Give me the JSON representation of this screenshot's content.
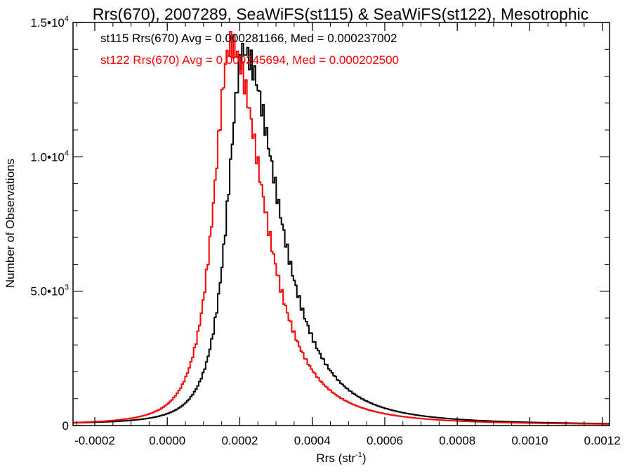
{
  "chart_data": {
    "type": "histogram",
    "title": "Rrs(670), 2007289, SeaWiFS(st115) & SeaWiFS(st122), Mesotrophic",
    "xlabel": "Rrs (str",
    "xlabel_sup": "-1",
    "xlabel_end": ")",
    "ylabel": "Number of Observations",
    "xlim": [
      -0.00026,
      0.00122
    ],
    "ylim": [
      0,
      15000
    ],
    "x_ticks": [
      {
        "value": -0.0002,
        "label": "-0.0002"
      },
      {
        "value": 0.0,
        "label": "0.0000"
      },
      {
        "value": 0.0002,
        "label": "0.0002"
      },
      {
        "value": 0.0004,
        "label": "0.0004"
      },
      {
        "value": 0.0006,
        "label": "0.0006"
      },
      {
        "value": 0.0008,
        "label": "0.0008"
      },
      {
        "value": 0.001,
        "label": "0.0010"
      },
      {
        "value": 0.0012,
        "label": "0.0012"
      }
    ],
    "y_ticks": [
      {
        "value": 0,
        "mant": "0",
        "exp": ""
      },
      {
        "value": 5000,
        "mant": "5.0•10",
        "exp": "3"
      },
      {
        "value": 10000,
        "mant": "1.0•10",
        "exp": "4"
      },
      {
        "value": 15000,
        "mant": "1.5•10",
        "exp": "4"
      }
    ],
    "grid": false,
    "legend_position": "top-left",
    "bin_width": 4.75e-06,
    "series": [
      {
        "name": "st115",
        "color": "#000000",
        "annotation": "st115 Rrs(670) Avg = 0.000281166, Med = 0.000237002",
        "mode": 0.00021,
        "peak": 13800,
        "sigma_left": 7e-05,
        "sigma_right": 0.000155,
        "tail_level": 120
      },
      {
        "name": "st122",
        "color": "#ff0000",
        "annotation": "st122 Rrs(670) Avg = 0.000245694, Med = 0.000202500",
        "mode": 0.000175,
        "peak": 14100,
        "sigma_left": 7.5e-05,
        "sigma_right": 0.000145,
        "tail_level": 100
      }
    ]
  }
}
